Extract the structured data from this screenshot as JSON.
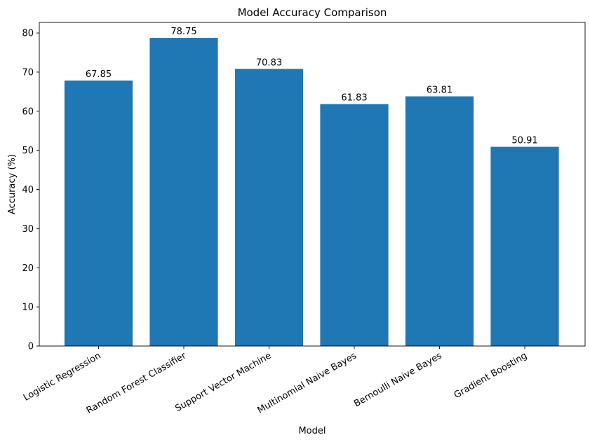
{
  "chart_data": {
    "type": "bar",
    "title": "Model Accuracy Comparison",
    "xlabel": "Model",
    "ylabel": "Accuracy (%)",
    "categories": [
      "Logistic Regression",
      "Random Forest Classifier",
      "Support Vector Machine",
      "Multinomial Naive Bayes",
      "Bernoulli Naive Bayes",
      "Gradient Boosting"
    ],
    "values": [
      67.85,
      78.75,
      70.83,
      61.83,
      63.81,
      50.91
    ],
    "data_labels": [
      "67.85",
      "78.75",
      "70.83",
      "61.83",
      "63.81",
      "50.91"
    ],
    "ylim": [
      0,
      82.7
    ],
    "yticks": [
      0,
      10,
      20,
      30,
      40,
      50,
      60,
      70,
      80
    ],
    "grid": false,
    "bar_color": "#1f77b4"
  }
}
